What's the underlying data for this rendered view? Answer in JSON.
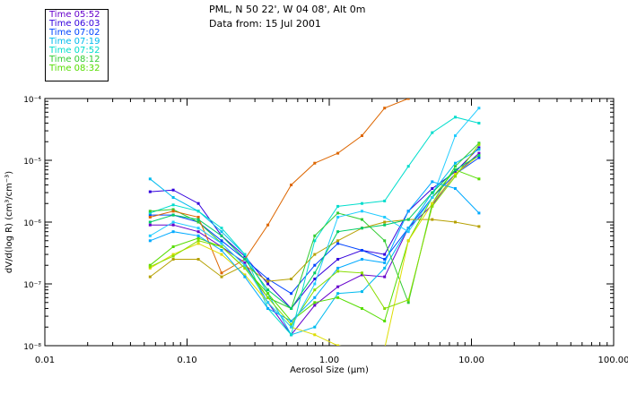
{
  "header": {
    "location": "PML, N 50 22', W 04 08', Alt 0m",
    "data_from": "Data from: 15 Jul 2001"
  },
  "chart_data": {
    "type": "line",
    "xscale": "log",
    "yscale": "log",
    "xlim": [
      0.01,
      100
    ],
    "ylim": [
      1e-08,
      0.0001
    ],
    "xlabel": "Aerosol Size (µm)",
    "ylabel": "dV/d(log R) (cm³/cm⁻³)",
    "x_ticks": [
      "0.01",
      "0.10",
      "1.00",
      "10.00",
      "100.00"
    ],
    "y_ticks": [
      "10⁻⁸",
      "10⁻⁷",
      "10⁻⁶",
      "10⁻⁵",
      "10⁻⁴"
    ],
    "x": [
      0.055,
      0.08,
      0.12,
      0.175,
      0.255,
      0.37,
      0.54,
      0.79,
      1.15,
      1.7,
      2.45,
      3.6,
      5.3,
      7.7,
      11.3
    ],
    "series": [
      {
        "name": "Time 05:52",
        "color": "#6600cc",
        "values": [
          9e-07,
          9e-07,
          7e-07,
          4e-07,
          2.2e-07,
          5e-08,
          1.5e-08,
          4.5e-08,
          9e-08,
          1.4e-07,
          1.3e-07,
          8e-07,
          1.9e-06,
          6e-06,
          1.3e-05
        ]
      },
      {
        "name": "Time 06:03",
        "color": "#3300dd",
        "values": [
          3.1e-06,
          3.3e-06,
          2e-06,
          6e-07,
          2.8e-07,
          1e-07,
          4e-08,
          1.2e-07,
          2.5e-07,
          3.5e-07,
          3e-07,
          1.5e-06,
          3.5e-06,
          6.5e-06,
          1.6e-05
        ]
      },
      {
        "name": "Time 07:02",
        "color": "#0044ff",
        "values": [
          1.3e-06,
          1.3e-06,
          1e-06,
          5e-07,
          2.5e-07,
          1.2e-07,
          7e-08,
          2e-07,
          4.5e-07,
          3.5e-07,
          2.5e-07,
          8e-07,
          2.5e-06,
          6e-06,
          1.1e-05
        ]
      },
      {
        "name": "Time 07:19",
        "color": "#00bbee",
        "values": [
          5e-06,
          2.5e-06,
          1.5e-06,
          7e-07,
          3e-07,
          7e-08,
          1.5e-08,
          2e-08,
          7e-08,
          7.5e-08,
          1.8e-07,
          8e-07,
          3e-06,
          9e-06,
          1.5e-05
        ]
      },
      {
        "name": "Time 07:52",
        "color": "#00ddcc",
        "values": [
          1.4e-06,
          1.9e-06,
          1.5e-06,
          8e-07,
          3e-07,
          4e-08,
          1.5e-08,
          5e-07,
          1.8e-06,
          2e-06,
          2.2e-06,
          8e-06,
          2.8e-05,
          5e-05,
          4e-05
        ]
      },
      {
        "name": "Time 08:12",
        "color": "#33cc33",
        "values": [
          1.5e-06,
          1.6e-06,
          1e-06,
          4.5e-07,
          2e-07,
          6e-08,
          4e-08,
          6e-07,
          1.4e-06,
          1.1e-06,
          5e-07,
          5e-08,
          2e-06,
          8e-06,
          1.9e-05
        ]
      },
      {
        "name": "Time 08:32",
        "color": "#55dd00",
        "values": [
          2e-07,
          4e-07,
          5.5e-07,
          4e-07,
          1.8e-07,
          7e-08,
          2.5e-08,
          5e-08,
          6e-08,
          4e-08,
          2.5e-08,
          5e-07,
          2.5e-06,
          7e-06,
          5e-06
        ]
      },
      {
        "name": "",
        "color": "#dd6600",
        "values": [
          1.2e-06,
          1.5e-06,
          1.2e-06,
          1.5e-07,
          2.5e-07,
          9e-07,
          4e-06,
          9e-06,
          1.3e-05,
          2.5e-05,
          7e-05,
          0.0001,
          null,
          null,
          null
        ]
      },
      {
        "name": "",
        "color": "#b5a000",
        "values": [
          1.3e-07,
          2.5e-07,
          2.5e-07,
          1.3e-07,
          2e-07,
          1.1e-07,
          1.2e-07,
          3e-07,
          5e-07,
          8e-07,
          1e-06,
          1.1e-06,
          1.1e-06,
          1e-06,
          8.5e-07
        ]
      },
      {
        "name": "",
        "color": "#dddd00",
        "values": [
          1.8e-07,
          3e-07,
          4.5e-07,
          3e-07,
          1.4e-07,
          5e-08,
          2e-08,
          1.5e-08,
          1e-08,
          9e-09,
          9e-09,
          5e-07,
          2e-06,
          6e-06,
          1.2e-05
        ]
      },
      {
        "name": "",
        "color": "#00aaff",
        "values": [
          5e-07,
          7e-07,
          6e-07,
          3.5e-07,
          1.3e-07,
          4e-08,
          2.5e-08,
          6e-08,
          1.8e-07,
          2.5e-07,
          2.2e-07,
          1.5e-06,
          4.5e-06,
          3.5e-06,
          1.4e-06
        ]
      },
      {
        "name": "",
        "color": "#88dd00",
        "values": [
          1.9e-07,
          2.8e-07,
          5e-07,
          4e-07,
          1.8e-07,
          6e-08,
          2.2e-08,
          8e-08,
          1.6e-07,
          1.5e-07,
          4e-08,
          5.5e-08,
          1.8e-06,
          5.5e-06,
          1.8e-05
        ]
      },
      {
        "name": "",
        "color": "#22ccff",
        "values": [
          6e-07,
          1e-06,
          8e-07,
          4.5e-07,
          2e-07,
          5e-08,
          2e-08,
          1e-07,
          1.2e-06,
          1.5e-06,
          1.2e-06,
          7e-07,
          2.5e-06,
          2.5e-05,
          7e-05
        ]
      },
      {
        "name": "",
        "color": "#00cc66",
        "values": [
          1e-06,
          1.3e-06,
          1.1e-06,
          6e-07,
          2.5e-07,
          8e-08,
          4e-08,
          1.5e-07,
          7e-07,
          8e-07,
          9e-07,
          1.1e-06,
          3e-06,
          7e-06,
          1.2e-05
        ]
      }
    ]
  }
}
